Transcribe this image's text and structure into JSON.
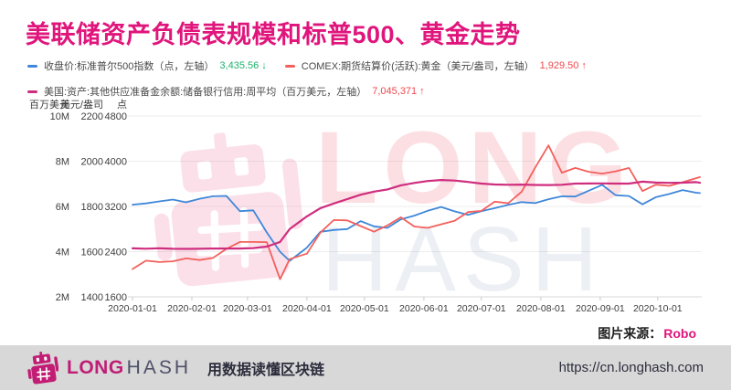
{
  "title": "美联储资产负债表规模和标普500、黄金走势",
  "colors": {
    "brand": "#e0157c",
    "grid": "#ededed",
    "axis_text": "#3d3d3d"
  },
  "legend": [
    {
      "label": "收盘价:标准普尔500指数（点，左轴）",
      "value": "3,435.56",
      "arrow": "↓",
      "marker_color": "#3f87d9",
      "value_color": "#1eb26b"
    },
    {
      "label": "COMEX:期货结算价(活跃):黄金（美元/盎司，左轴）",
      "value": "1,929.50",
      "arrow": "↑",
      "marker_color": "#f4605c",
      "value_color": "#f0484e"
    },
    {
      "label": "美国:资产:其他供应准备金余额:储备银行信用:周平均（百万美元，左轴）",
      "value": "7,045,371",
      "arrow": "↑",
      "marker_color": "#cf2d7e",
      "value_color": "#f0484e"
    }
  ],
  "chart_data": {
    "type": "line",
    "x_domain": [
      "2020-01-01",
      "2020-10-23"
    ],
    "x_ticks": [
      "2020-01-01",
      "2020-02-01",
      "2020-03-01",
      "2020-04-01",
      "2020-05-01",
      "2020-06-01",
      "2020-07-01",
      "2020-08-01",
      "2020-09-01",
      "2020-10-01"
    ],
    "dates": [
      "2020-01-01",
      "2020-01-08",
      "2020-01-15",
      "2020-01-22",
      "2020-01-29",
      "2020-02-05",
      "2020-02-12",
      "2020-02-19",
      "2020-02-26",
      "2020-03-04",
      "2020-03-11",
      "2020-03-18",
      "2020-03-23",
      "2020-04-01",
      "2020-04-08",
      "2020-04-15",
      "2020-04-22",
      "2020-04-29",
      "2020-05-06",
      "2020-05-13",
      "2020-05-20",
      "2020-05-27",
      "2020-06-03",
      "2020-06-10",
      "2020-06-17",
      "2020-06-24",
      "2020-07-01",
      "2020-07-08",
      "2020-07-15",
      "2020-07-22",
      "2020-07-29",
      "2020-08-05",
      "2020-08-12",
      "2020-08-19",
      "2020-08-26",
      "2020-09-02",
      "2020-09-09",
      "2020-09-16",
      "2020-09-23",
      "2020-09-30",
      "2020-10-07",
      "2020-10-14",
      "2020-10-21",
      "2020-10-23"
    ],
    "axes": [
      {
        "header": "百万美元",
        "min": 2000000,
        "max": 10000000,
        "ticks": [
          "10M",
          "8M",
          "6M",
          "4M",
          "2M"
        ]
      },
      {
        "header": "美元/盎司",
        "min": 1400,
        "max": 2200,
        "ticks": [
          "2200",
          "2000",
          "1800",
          "1600",
          "1400"
        ]
      },
      {
        "header": "点",
        "min": 1600,
        "max": 4800,
        "ticks": [
          "4800",
          "4000",
          "3200",
          "2400",
          "1600"
        ]
      }
    ],
    "series": [
      {
        "name": "收盘价:标准普尔500指数",
        "axis": 2,
        "color": "#3f87d9",
        "width": 1.8,
        "values": [
          3231,
          3253,
          3289,
          3321,
          3273,
          3335,
          3379,
          3386,
          3116,
          3130,
          2741,
          2398,
          2237,
          2471,
          2750,
          2783,
          2799,
          2940,
          2848,
          2820,
          2972,
          3036,
          3123,
          3190,
          3113,
          3050,
          3116,
          3170,
          3227,
          3276,
          3258,
          3328,
          3380,
          3375,
          3478,
          3581,
          3399,
          3385,
          3237,
          3363,
          3419,
          3489,
          3443,
          3435.56
        ]
      },
      {
        "name": "COMEX:期货结算价(活跃):黄金",
        "axis": 1,
        "color": "#f4605c",
        "width": 1.8,
        "values": [
          1523,
          1560,
          1554,
          1557,
          1570,
          1563,
          1572,
          1612,
          1643,
          1643,
          1642,
          1478,
          1567,
          1591,
          1684,
          1740,
          1738,
          1713,
          1688,
          1716,
          1752,
          1711,
          1705,
          1721,
          1736,
          1775,
          1780,
          1821,
          1814,
          1865,
          1971,
          2070,
          1949,
          1970,
          1953,
          1945,
          1955,
          1970,
          1868,
          1896,
          1891,
          1907,
          1925,
          1929.5
        ]
      },
      {
        "name": "美国:资产:其他供应准备金余额:储备银行信用:周平均",
        "axis": 0,
        "color": "#cf2d7e",
        "width": 2.2,
        "values": [
          4144000,
          4131000,
          4148000,
          4126000,
          4122000,
          4124000,
          4138000,
          4139000,
          4136000,
          4156000,
          4222000,
          4429000,
          5000000,
          5558000,
          5925000,
          6131000,
          6322000,
          6516000,
          6654000,
          6752000,
          6934000,
          7037000,
          7123000,
          7168000,
          7145000,
          7082000,
          7010000,
          6969000,
          6958000,
          6964000,
          6949000,
          6945000,
          6957000,
          7010000,
          7014000,
          7017000,
          7011000,
          7010000,
          7093000,
          7056000,
          7044000,
          7052000,
          7076000,
          7045371
        ]
      }
    ],
    "watermark": {
      "line1": "LONG",
      "line2": "HASH"
    }
  },
  "source": {
    "label": "图片来源：",
    "value": "Robo"
  },
  "footer": {
    "brand_long": "LONG",
    "brand_hash": "HASH",
    "tagline": "用数据读懂区块链",
    "url": "https://cn.longhash.com"
  }
}
